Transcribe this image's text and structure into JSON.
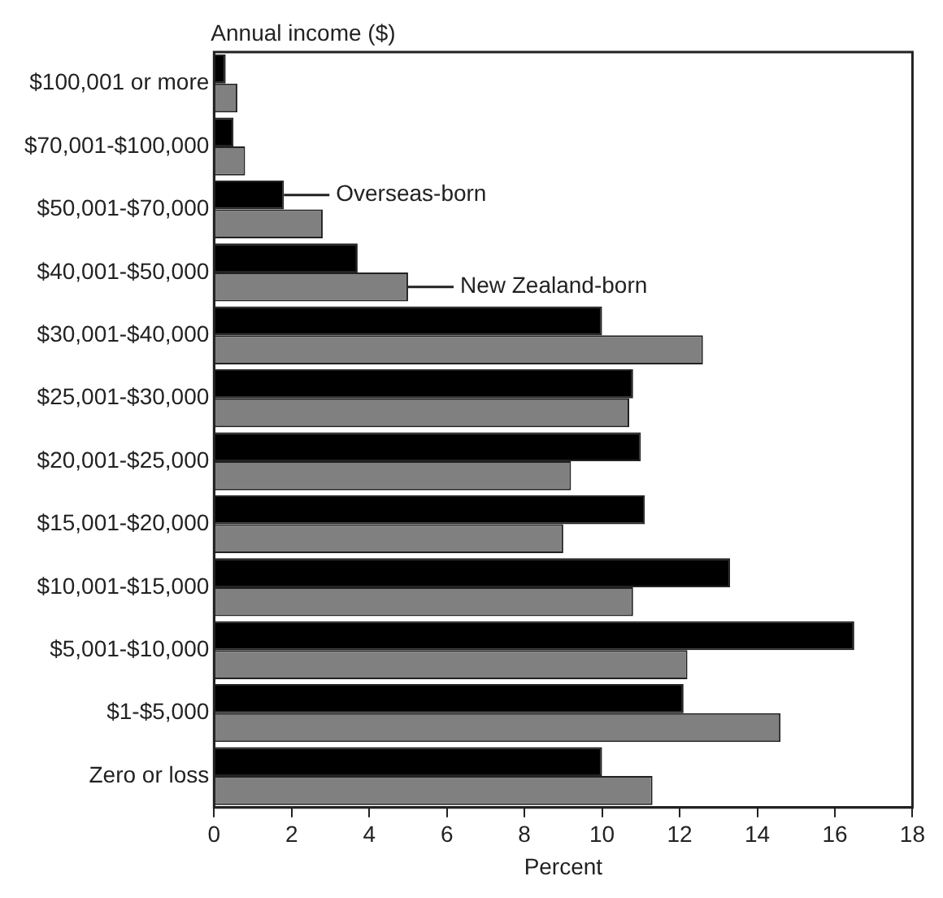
{
  "chart_data": {
    "type": "bar",
    "orientation": "horizontal",
    "ylabel": "Annual income ($)",
    "xlabel": "Percent",
    "categories": [
      "$100,001 or more",
      "$70,001-$100,000",
      "$50,001-$70,000",
      "$40,001-$50,000",
      "$30,001-$40,000",
      "$25,001-$30,000",
      "$20,001-$25,000",
      "$15,001-$20,000",
      "$10,001-$15,000",
      "$5,001-$10,000",
      "$1-$5,000",
      "Zero or loss"
    ],
    "series": [
      {
        "name": "Overseas-born",
        "color": "#000000",
        "values": [
          0.3,
          0.5,
          1.8,
          3.7,
          10.0,
          10.8,
          11.0,
          11.1,
          13.3,
          16.5,
          12.1,
          10.0
        ]
      },
      {
        "name": "New Zealand-born",
        "color": "#808080",
        "values": [
          0.6,
          0.8,
          2.8,
          5.0,
          12.6,
          10.7,
          9.2,
          9.0,
          10.8,
          12.2,
          14.6,
          11.3
        ]
      }
    ],
    "xlim": [
      0,
      18
    ],
    "xticks": [
      0,
      2,
      4,
      6,
      8,
      10,
      12,
      14,
      16,
      18
    ],
    "grid": false,
    "legend": false
  }
}
